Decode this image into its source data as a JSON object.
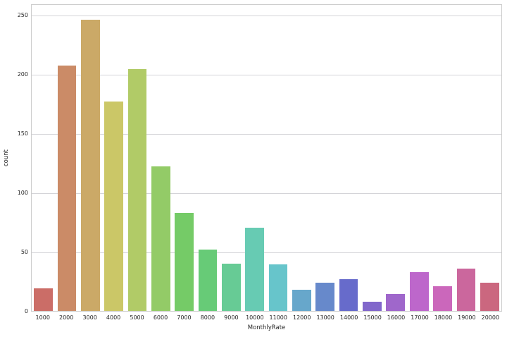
{
  "figure": {
    "background": "#ffffff",
    "spine_color": "#cccccc",
    "grid_color": "#d4d4d8",
    "tick_label_color": "#262626",
    "axis_label_color": "#262626"
  },
  "chart_data": {
    "type": "bar",
    "title": "",
    "xlabel": "MonthlyRate",
    "ylabel": "count",
    "categories": [
      "1000",
      "2000",
      "3000",
      "4000",
      "5000",
      "6000",
      "7000",
      "8000",
      "9000",
      "10000",
      "11000",
      "12000",
      "13000",
      "14000",
      "15000",
      "16000",
      "17000",
      "18000",
      "19000",
      "20000"
    ],
    "values": [
      19,
      207,
      246,
      177,
      204,
      122,
      83,
      52,
      40,
      70,
      39,
      18,
      24,
      27,
      8,
      14,
      33,
      21,
      36,
      24
    ],
    "bar_colors": [
      "#cb6d67",
      "#cb8b67",
      "#cba967",
      "#cbc767",
      "#b1cb67",
      "#93cb67",
      "#75cb67",
      "#67cb77",
      "#67cb95",
      "#67cbb3",
      "#67c5cb",
      "#67a7cb",
      "#6789cb",
      "#676bcb",
      "#8167cb",
      "#9f67cb",
      "#bd67cb",
      "#cb67bb",
      "#cb679d",
      "#cb677f"
    ],
    "y_ticks": [
      0,
      50,
      100,
      150,
      200,
      250
    ],
    "ylim": [
      0,
      259.5
    ],
    "grid": "horizontal-only",
    "legend": "none",
    "bar_rel_width": 0.8
  }
}
